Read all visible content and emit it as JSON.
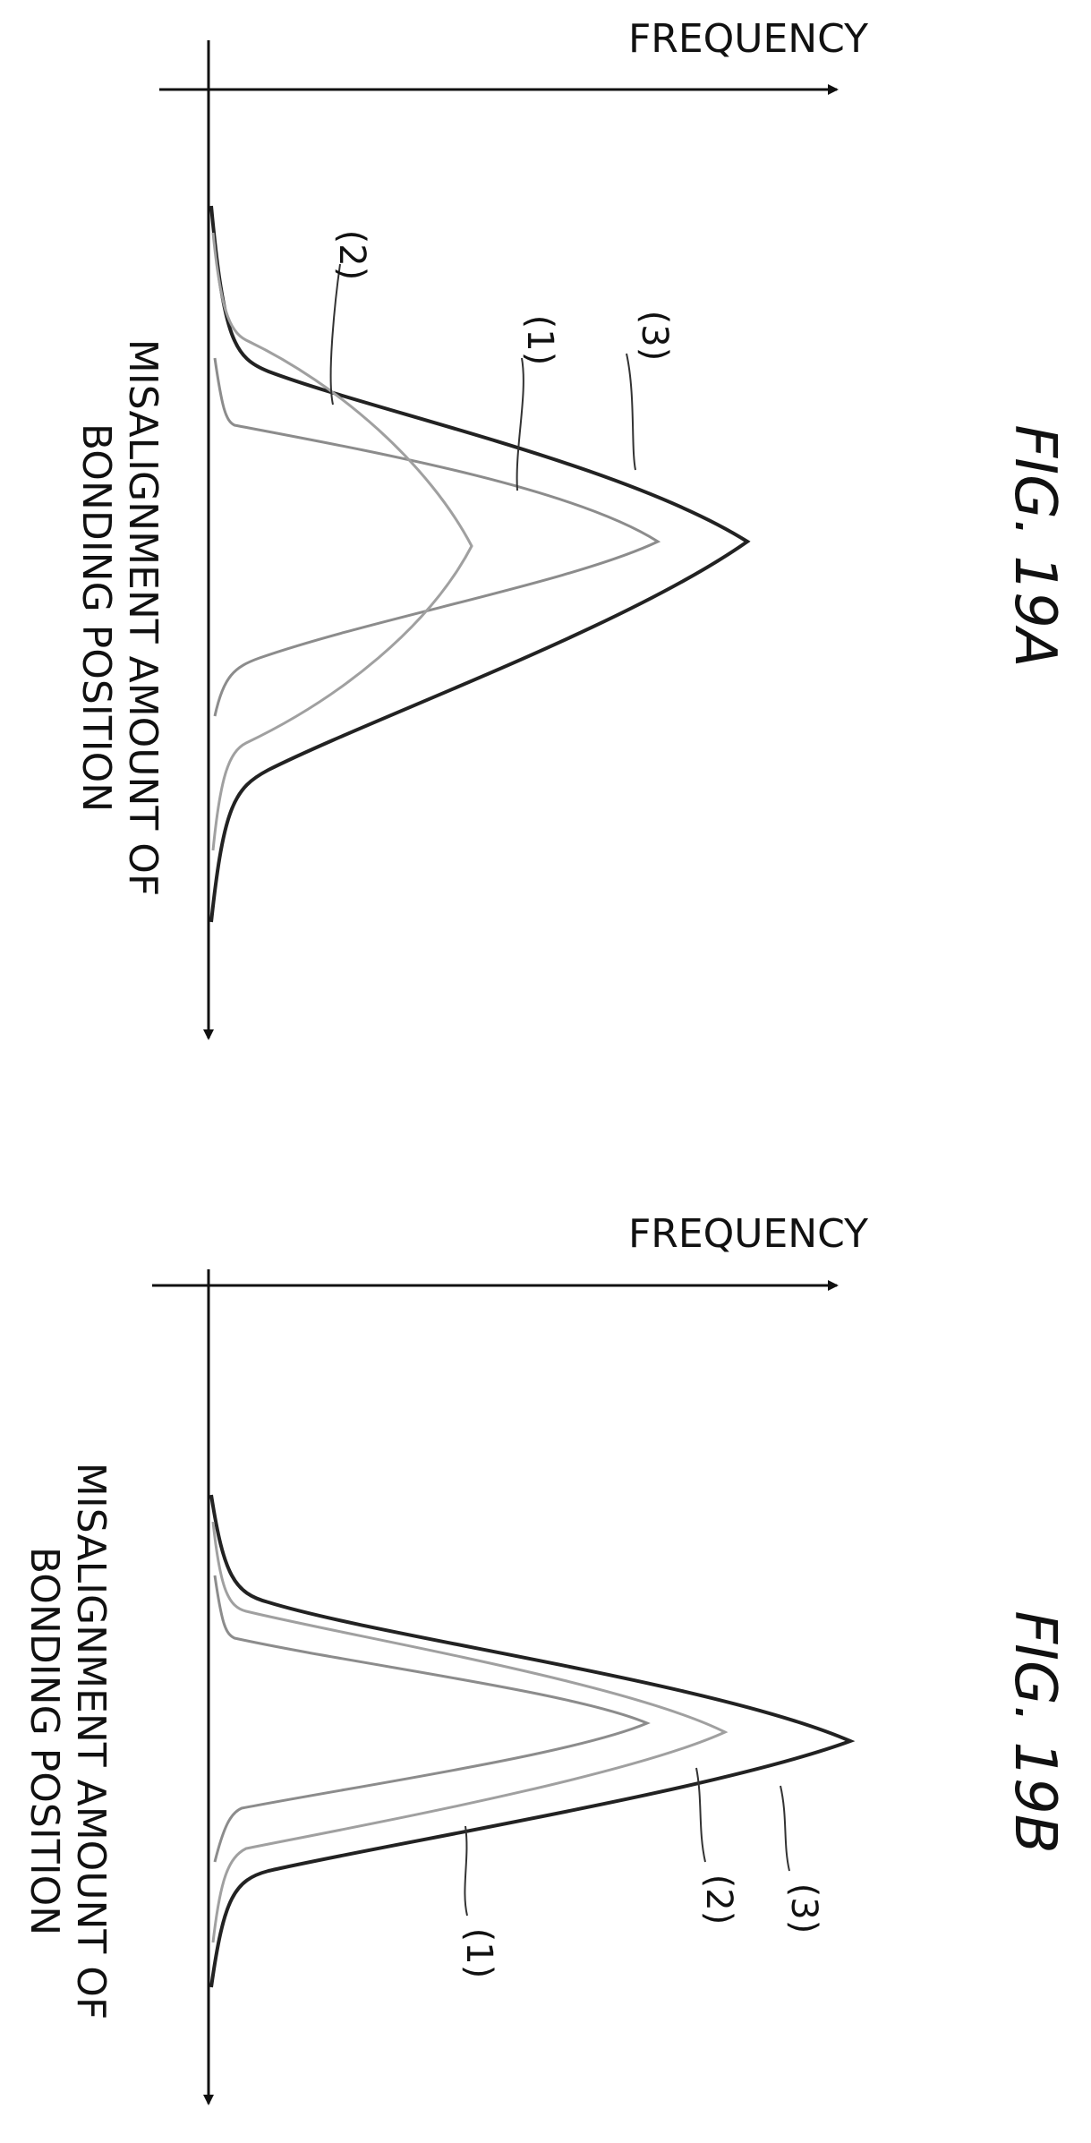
{
  "figures": [
    {
      "id": "A",
      "caption": "FIG. 19A",
      "x_axis_label": "FREQUENCY",
      "y_axis_label_line1": "MISALIGNMENT AMOUNT OF",
      "y_axis_label_line2": "BONDING POSITION",
      "curve_labels": [
        "(1)",
        "(2)",
        "(3)"
      ]
    },
    {
      "id": "B",
      "caption": "FIG. 19B",
      "x_axis_label": "FREQUENCY",
      "y_axis_label_line1": "MISALIGNMENT AMOUNT OF",
      "y_axis_label_line2": "BONDING POSITION",
      "curve_labels": [
        "(1)",
        "(2)",
        "(3)"
      ]
    }
  ],
  "colors": {
    "curve_1": "#8c8c8c",
    "curve_2": "#a0a0a0",
    "curve_3": "#222222",
    "axis": "#111111"
  }
}
